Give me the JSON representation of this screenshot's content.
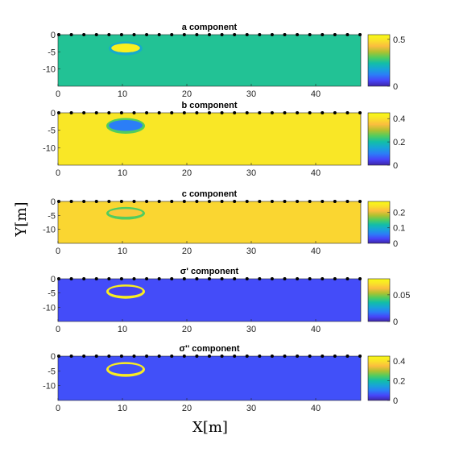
{
  "figure": {
    "xlabel": "X[m]",
    "ylabel": "Y[m]"
  },
  "colormap": [
    "#3e26a8",
    "#4745f9",
    "#2b7ef7",
    "#18a4d8",
    "#12bea8",
    "#51cc5f",
    "#b1c12f",
    "#fbbd3f",
    "#f9e22a",
    "#f9fb15"
  ],
  "chart_data": [
    {
      "type": "heatmap",
      "title": "a component",
      "xlim": [
        0,
        47
      ],
      "ylim": [
        -15,
        0
      ],
      "xticks": [
        "0",
        "10",
        "20",
        "30",
        "40"
      ],
      "yticks": [
        "0",
        "-5",
        "-10"
      ],
      "clim": [
        0,
        0.55
      ],
      "cticks": [
        "0",
        "0.5"
      ],
      "background": 0.26,
      "anomaly": {
        "center_x": 10.5,
        "depth_top": -2.0,
        "depth_bottom": -6.0,
        "half_width": 2.6,
        "interior_value": 0.52,
        "rim_value": 0.2
      },
      "electrodes_visible": true
    },
    {
      "type": "heatmap",
      "title": "b component",
      "xlim": [
        0,
        47
      ],
      "ylim": [
        -15,
        0
      ],
      "xticks": [
        "0",
        "10",
        "20",
        "30",
        "40"
      ],
      "yticks": [
        "0",
        "-5",
        "-10"
      ],
      "clim": [
        0,
        0.45
      ],
      "cticks": [
        "0",
        "0.2",
        "0.4"
      ],
      "background": 0.41,
      "anomaly": {
        "center_x": 10.5,
        "depth_top": -1.5,
        "depth_bottom": -6.0,
        "half_width": 3.0,
        "interior_value": 0.1,
        "rim_value": 0.25
      },
      "electrodes_visible": true
    },
    {
      "type": "heatmap",
      "title": "c component",
      "xlim": [
        0,
        47
      ],
      "ylim": [
        -15,
        0
      ],
      "xticks": [
        "0",
        "10",
        "20",
        "30",
        "40"
      ],
      "yticks": [
        "0",
        "-5",
        "-10"
      ],
      "clim": [
        0,
        0.27
      ],
      "cticks": [
        "0",
        "0.1",
        "0.2"
      ],
      "background": 0.23,
      "anomaly": {
        "center_x": 10.5,
        "depth_top": -2.0,
        "depth_bottom": -6.5,
        "half_width": 3.0,
        "interior_value": 0.22,
        "rim_value": 0.15
      },
      "electrodes_visible": true
    },
    {
      "type": "heatmap",
      "title": "σ' component",
      "xlim": [
        0,
        47
      ],
      "ylim": [
        -15,
        0
      ],
      "xticks": [
        "0",
        "10",
        "20",
        "30",
        "40"
      ],
      "yticks": [
        "0",
        "-5",
        "-10"
      ],
      "clim": [
        0,
        0.08
      ],
      "cticks": [
        "0",
        "0.05"
      ],
      "background": 0.01,
      "anomaly": {
        "center_x": 10.5,
        "depth_top": -2.0,
        "depth_bottom": -7.0,
        "half_width": 3.0,
        "interior_value": 0.008,
        "rim_value": 0.075
      },
      "electrodes_visible": true
    },
    {
      "type": "heatmap",
      "title": "σ'' component",
      "xlim": [
        0,
        47
      ],
      "ylim": [
        -15,
        0
      ],
      "xticks": [
        "0",
        "10",
        "20",
        "30",
        "40"
      ],
      "yticks": [
        "0",
        "-5",
        "-10"
      ],
      "clim": [
        0,
        0.45
      ],
      "cticks": [
        "0",
        "0.2",
        "0.4"
      ],
      "background": 0.06,
      "anomaly": {
        "center_x": 10.5,
        "depth_top": -2.0,
        "depth_bottom": -7.0,
        "half_width": 3.0,
        "interior_value": 0.06,
        "rim_value": 0.42
      },
      "electrodes_visible": true
    }
  ]
}
